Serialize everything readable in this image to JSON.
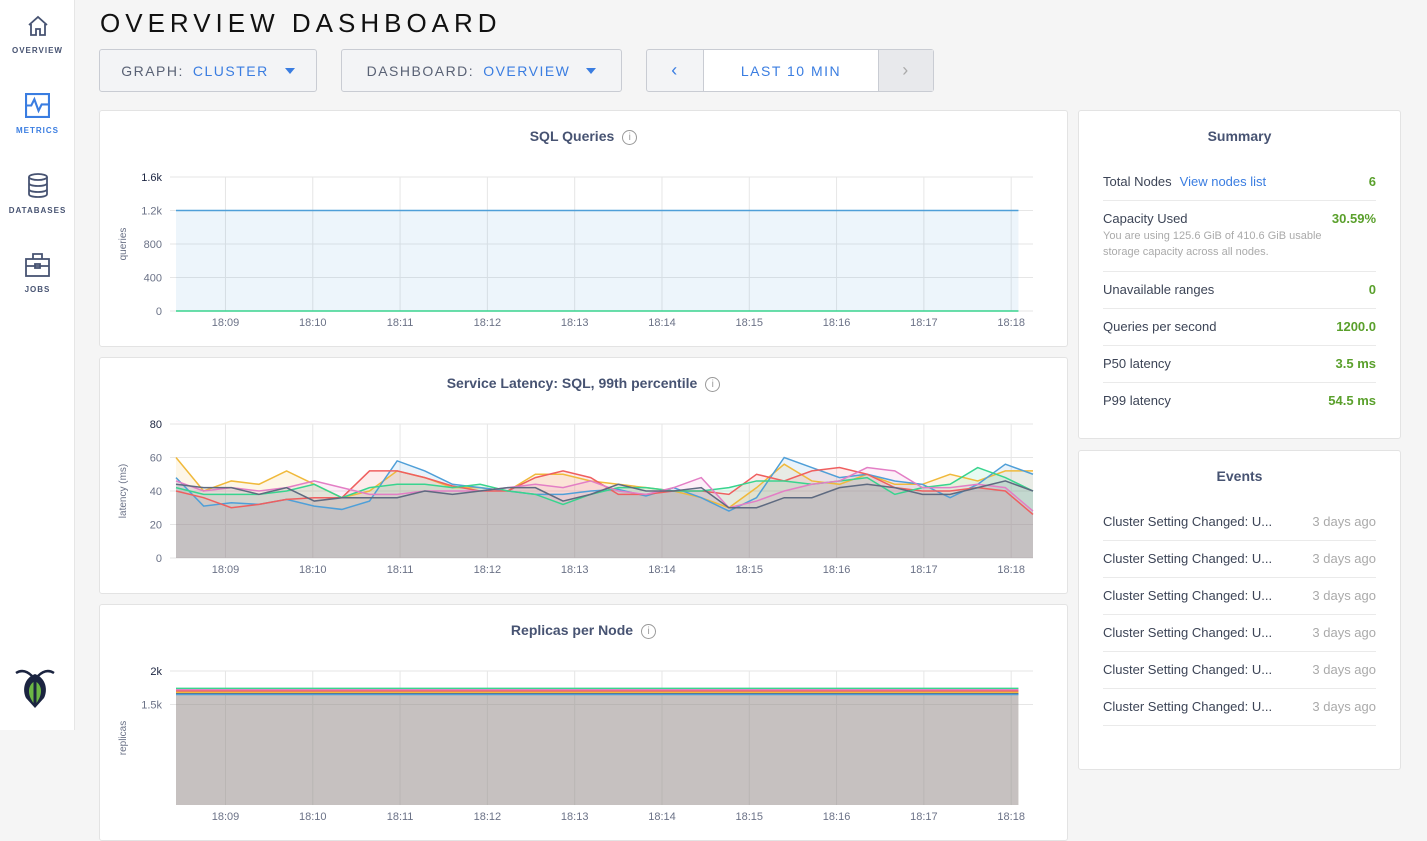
{
  "sidebar": {
    "items": [
      {
        "label": "OVERVIEW",
        "icon": "home-icon",
        "active": false
      },
      {
        "label": "METRICS",
        "icon": "metrics-icon",
        "active": true
      },
      {
        "label": "DATABASES",
        "icon": "database-icon",
        "active": false
      },
      {
        "label": "JOBS",
        "icon": "briefcase-icon",
        "active": false
      }
    ],
    "logo": "cockroach-logo"
  },
  "header": {
    "title": "OVERVIEW DASHBOARD"
  },
  "controls": {
    "graph_label": "GRAPH:",
    "graph_value": "CLUSTER",
    "dashboard_label": "DASHBOARD:",
    "dashboard_value": "OVERVIEW",
    "prev": "‹",
    "range": "LAST 10 MIN",
    "next": "›"
  },
  "colors": {
    "accent": "#3a7de1",
    "good": "#5aa02c",
    "series": [
      "#4f9fd8",
      "#f0b93b",
      "#ef5f5f",
      "#39d48e",
      "#e37ec5",
      "#5e6a80"
    ]
  },
  "summary": {
    "title": "Summary",
    "rows": [
      {
        "label": "Total Nodes",
        "link": "View nodes list",
        "value": "6"
      },
      {
        "label": "Capacity Used",
        "value": "30.59%",
        "desc": "You are using 125.6 GiB of 410.6 GiB usable storage capacity across all nodes."
      },
      {
        "label": "Unavailable ranges",
        "value": "0"
      },
      {
        "label": "Queries per second",
        "value": "1200.0"
      },
      {
        "label": "P50 latency",
        "value": "3.5 ms"
      },
      {
        "label": "P99 latency",
        "value": "54.5 ms"
      }
    ]
  },
  "events": {
    "title": "Events",
    "items": [
      {
        "text": "Cluster Setting Changed: U...",
        "time": "3 days ago"
      },
      {
        "text": "Cluster Setting Changed: U...",
        "time": "3 days ago"
      },
      {
        "text": "Cluster Setting Changed: U...",
        "time": "3 days ago"
      },
      {
        "text": "Cluster Setting Changed: U...",
        "time": "3 days ago"
      },
      {
        "text": "Cluster Setting Changed: U...",
        "time": "3 days ago"
      },
      {
        "text": "Cluster Setting Changed: U...",
        "time": "3 days ago"
      }
    ]
  },
  "chart_data": [
    {
      "type": "area",
      "title": "SQL Queries",
      "ylabel": "queries",
      "ylim": [
        0,
        1600
      ],
      "yticks": [
        "0",
        "400",
        "800",
        "1.2k",
        "1.6k"
      ],
      "ytick_values": [
        0,
        400,
        800,
        1200,
        1600
      ],
      "xticks": [
        "18:09",
        "18:10",
        "18:11",
        "18:12",
        "18:13",
        "18:14",
        "18:15",
        "18:16",
        "18:17",
        "18:18"
      ],
      "x_start": "18:08:26",
      "x_end": "18:18:15",
      "data_start": "18:08:26",
      "data_end": "18:18:05",
      "step_seconds": 20,
      "series": [
        {
          "values": [
            1200,
            1200,
            1200,
            1200,
            1200,
            1200,
            1200,
            1200,
            1200,
            1200,
            1200,
            1200,
            1200,
            1200,
            1200,
            1200,
            1200,
            1200,
            1200,
            1200,
            1200,
            1200,
            1200,
            1200,
            1200,
            1200,
            1200,
            1200,
            1200,
            1200
          ],
          "color": "#4f9fd8"
        },
        {
          "values": [
            0,
            0,
            0,
            0,
            0,
            0,
            0,
            0,
            0,
            0,
            0,
            0,
            0,
            0,
            0,
            0,
            0,
            0,
            0,
            0,
            0,
            0,
            0,
            0,
            0,
            0,
            0,
            0,
            0,
            0
          ],
          "color": "#39d48e"
        }
      ]
    },
    {
      "type": "area",
      "title": "Service Latency: SQL, 99th percentile",
      "ylabel": "latency (ms)",
      "ylim": [
        0,
        80
      ],
      "yticks": [
        "0",
        "20",
        "40",
        "60",
        "80"
      ],
      "ytick_values": [
        0,
        20,
        40,
        60,
        80
      ],
      "xticks": [
        "18:09",
        "18:10",
        "18:11",
        "18:12",
        "18:13",
        "18:14",
        "18:15",
        "18:16",
        "18:17",
        "18:18"
      ],
      "x_start": "18:08:26",
      "x_end": "18:18:15",
      "data_start": "18:08:26",
      "data_end": "18:18:15",
      "step_seconds": 20,
      "series": [
        {
          "color": "#f0b93b",
          "values": [
            60,
            40,
            46,
            44,
            52,
            44,
            36,
            40,
            52,
            48,
            42,
            42,
            40,
            50,
            50,
            46,
            44,
            42,
            40,
            36,
            30,
            42,
            56,
            46,
            44,
            50,
            44,
            44,
            50,
            46,
            52,
            52
          ]
        },
        {
          "color": "#4f9fd8",
          "values": [
            48,
            31,
            33,
            32,
            35,
            31,
            29,
            34,
            58,
            52,
            44,
            42,
            40,
            38,
            38,
            40,
            41,
            37,
            42,
            36,
            28,
            36,
            60,
            54,
            48,
            50,
            46,
            44,
            36,
            44,
            56,
            50
          ]
        },
        {
          "color": "#ef5f5f",
          "values": [
            40,
            36,
            30,
            32,
            35,
            36,
            36,
            52,
            52,
            48,
            43,
            40,
            40,
            48,
            52,
            48,
            38,
            38,
            40,
            40,
            38,
            50,
            46,
            52,
            54,
            50,
            42,
            40,
            40,
            42,
            40,
            26
          ]
        },
        {
          "color": "#39d48e",
          "values": [
            42,
            38,
            38,
            38,
            40,
            44,
            36,
            42,
            44,
            44,
            42,
            44,
            40,
            38,
            32,
            38,
            42,
            42,
            40,
            40,
            42,
            46,
            46,
            44,
            46,
            48,
            38,
            42,
            44,
            54,
            48,
            40
          ]
        },
        {
          "color": "#e37ec5",
          "values": [
            46,
            40,
            42,
            40,
            42,
            46,
            42,
            38,
            38,
            40,
            40,
            40,
            42,
            44,
            42,
            46,
            40,
            38,
            42,
            48,
            30,
            34,
            40,
            44,
            46,
            54,
            52,
            42,
            42,
            44,
            42,
            28
          ]
        },
        {
          "color": "#5e6a80",
          "values": [
            44,
            42,
            42,
            38,
            42,
            34,
            36,
            36,
            36,
            40,
            38,
            40,
            42,
            42,
            34,
            38,
            44,
            40,
            40,
            42,
            30,
            30,
            36,
            36,
            42,
            44,
            42,
            38,
            38,
            42,
            46,
            40
          ]
        }
      ]
    },
    {
      "type": "area",
      "title": "Replicas per Node",
      "ylabel": "replicas",
      "ylim": [
        0,
        2000
      ],
      "yticks": [
        "1.5k",
        "2k"
      ],
      "ytick_values": [
        1500,
        2000
      ],
      "xticks": [
        "18:09",
        "18:10",
        "18:11",
        "18:12",
        "18:13",
        "18:14",
        "18:15",
        "18:16",
        "18:17",
        "18:18"
      ],
      "x_start": "18:08:26",
      "x_end": "18:18:15",
      "data_start": "18:08:26",
      "data_end": "18:18:05",
      "step_seconds": 20,
      "series": [
        {
          "color": "#39d48e",
          "values": [
            1740,
            1740
          ]
        },
        {
          "color": "#e37ec5",
          "values": [
            1720,
            1720
          ]
        },
        {
          "color": "#ef5f5f",
          "values": [
            1700,
            1700
          ]
        },
        {
          "color": "#f0b93b",
          "values": [
            1680,
            1680
          ]
        },
        {
          "color": "#5e6a80",
          "values": [
            1660,
            1660
          ]
        },
        {
          "color": "#4f9fd8",
          "values": [
            1650,
            1650
          ]
        }
      ]
    }
  ]
}
